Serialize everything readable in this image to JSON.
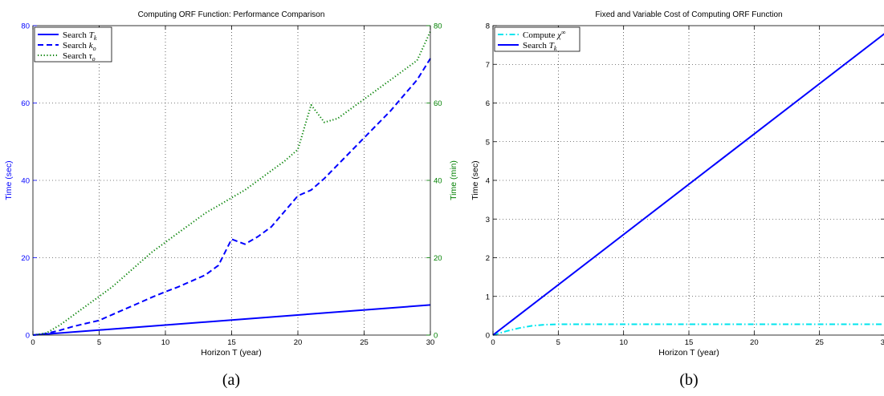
{
  "chart_data": [
    {
      "panel_caption": "(a)",
      "type": "line",
      "title": "Computing ORF Function: Performance Comparison",
      "xlabel": "Horizon T (year)",
      "ylabel": "Time (sec)",
      "ylabel_right": "Time (min)",
      "xlim": [
        0,
        30
      ],
      "ylim": [
        0,
        80
      ],
      "ylim_right": [
        0,
        80
      ],
      "xticks": [
        "0",
        "5",
        "10",
        "15",
        "20",
        "25",
        "30"
      ],
      "yticks": [
        "0",
        "20",
        "40",
        "60",
        "80"
      ],
      "yticks_right": [
        "0",
        "20",
        "40",
        "60",
        "80"
      ],
      "grid": true,
      "legend_position": "top-left",
      "left_axis_color": "#0000ff",
      "right_axis_color": "#008000",
      "series": [
        {
          "legend_text": "Search",
          "legend_math": "T",
          "legend_sub": "k",
          "color": "#0000ff",
          "style": "solid",
          "axis": "left",
          "x": [
            0,
            30
          ],
          "y": [
            0,
            7.8
          ]
        },
        {
          "legend_text": "Search",
          "legend_math": "k",
          "legend_sub": "o",
          "color": "#0000ff",
          "style": "dashed",
          "axis": "left",
          "x": [
            0,
            1,
            2,
            3,
            4,
            5,
            6,
            7,
            8,
            9,
            10,
            11,
            12,
            13,
            14,
            15,
            16,
            17,
            18,
            19,
            20,
            21,
            22,
            23,
            24,
            25,
            26,
            27,
            28,
            29,
            30
          ],
          "y": [
            0,
            0.4,
            1.2,
            2.2,
            3.0,
            3.8,
            5.3,
            6.8,
            8.3,
            9.8,
            11.2,
            12.5,
            14.0,
            15.5,
            18.0,
            24.8,
            23.5,
            25.5,
            28.0,
            32.0,
            36.0,
            37.5,
            40.5,
            44.0,
            47.5,
            51.0,
            54.5,
            58.0,
            62.0,
            66.0,
            71.5
          ]
        },
        {
          "legend_text": "Search",
          "legend_math": "τ",
          "legend_sub": "o",
          "color": "#008000",
          "style": "dotted",
          "axis": "right",
          "x": [
            0,
            1,
            2,
            3,
            4,
            5,
            6,
            7,
            8,
            9,
            10,
            11,
            12,
            13,
            14,
            15,
            16,
            17,
            18,
            19,
            20,
            21,
            22,
            23,
            24,
            25,
            26,
            27,
            28,
            29,
            30
          ],
          "y": [
            0,
            0.5,
            2.5,
            5.0,
            7.5,
            10.0,
            12.5,
            15.5,
            18.5,
            21.5,
            24.0,
            26.5,
            29.0,
            31.5,
            33.5,
            35.5,
            37.5,
            40.0,
            42.5,
            45.0,
            48.0,
            59.5,
            55.0,
            56.0,
            58.5,
            61.0,
            63.5,
            66.0,
            68.5,
            71.0,
            78.5
          ]
        }
      ]
    },
    {
      "panel_caption": "(b)",
      "type": "line",
      "title": "Fixed and Variable Cost of Computing ORF Function",
      "xlabel": "Horizon T (year)",
      "ylabel": "Time (sec)",
      "xlim": [
        0,
        30
      ],
      "ylim": [
        0,
        8
      ],
      "xticks": [
        "0",
        "5",
        "10",
        "15",
        "20",
        "25",
        "30"
      ],
      "yticks": [
        "0",
        "1",
        "2",
        "3",
        "4",
        "5",
        "6",
        "7",
        "8"
      ],
      "grid": true,
      "legend_position": "top-left",
      "series": [
        {
          "legend_text": "Compute",
          "legend_math": "χ",
          "legend_sup": "∞",
          "color": "#00e5ee",
          "style": "dashdot",
          "x": [
            0,
            1,
            2,
            3,
            4,
            5,
            10,
            15,
            20,
            25,
            30
          ],
          "y": [
            0,
            0.1,
            0.18,
            0.24,
            0.27,
            0.28,
            0.28,
            0.28,
            0.28,
            0.28,
            0.28
          ]
        },
        {
          "legend_text": "Search",
          "legend_math": "T",
          "legend_sub": "k",
          "color": "#0000ff",
          "style": "solid",
          "x": [
            0,
            30
          ],
          "y": [
            0,
            7.8
          ]
        }
      ]
    }
  ]
}
